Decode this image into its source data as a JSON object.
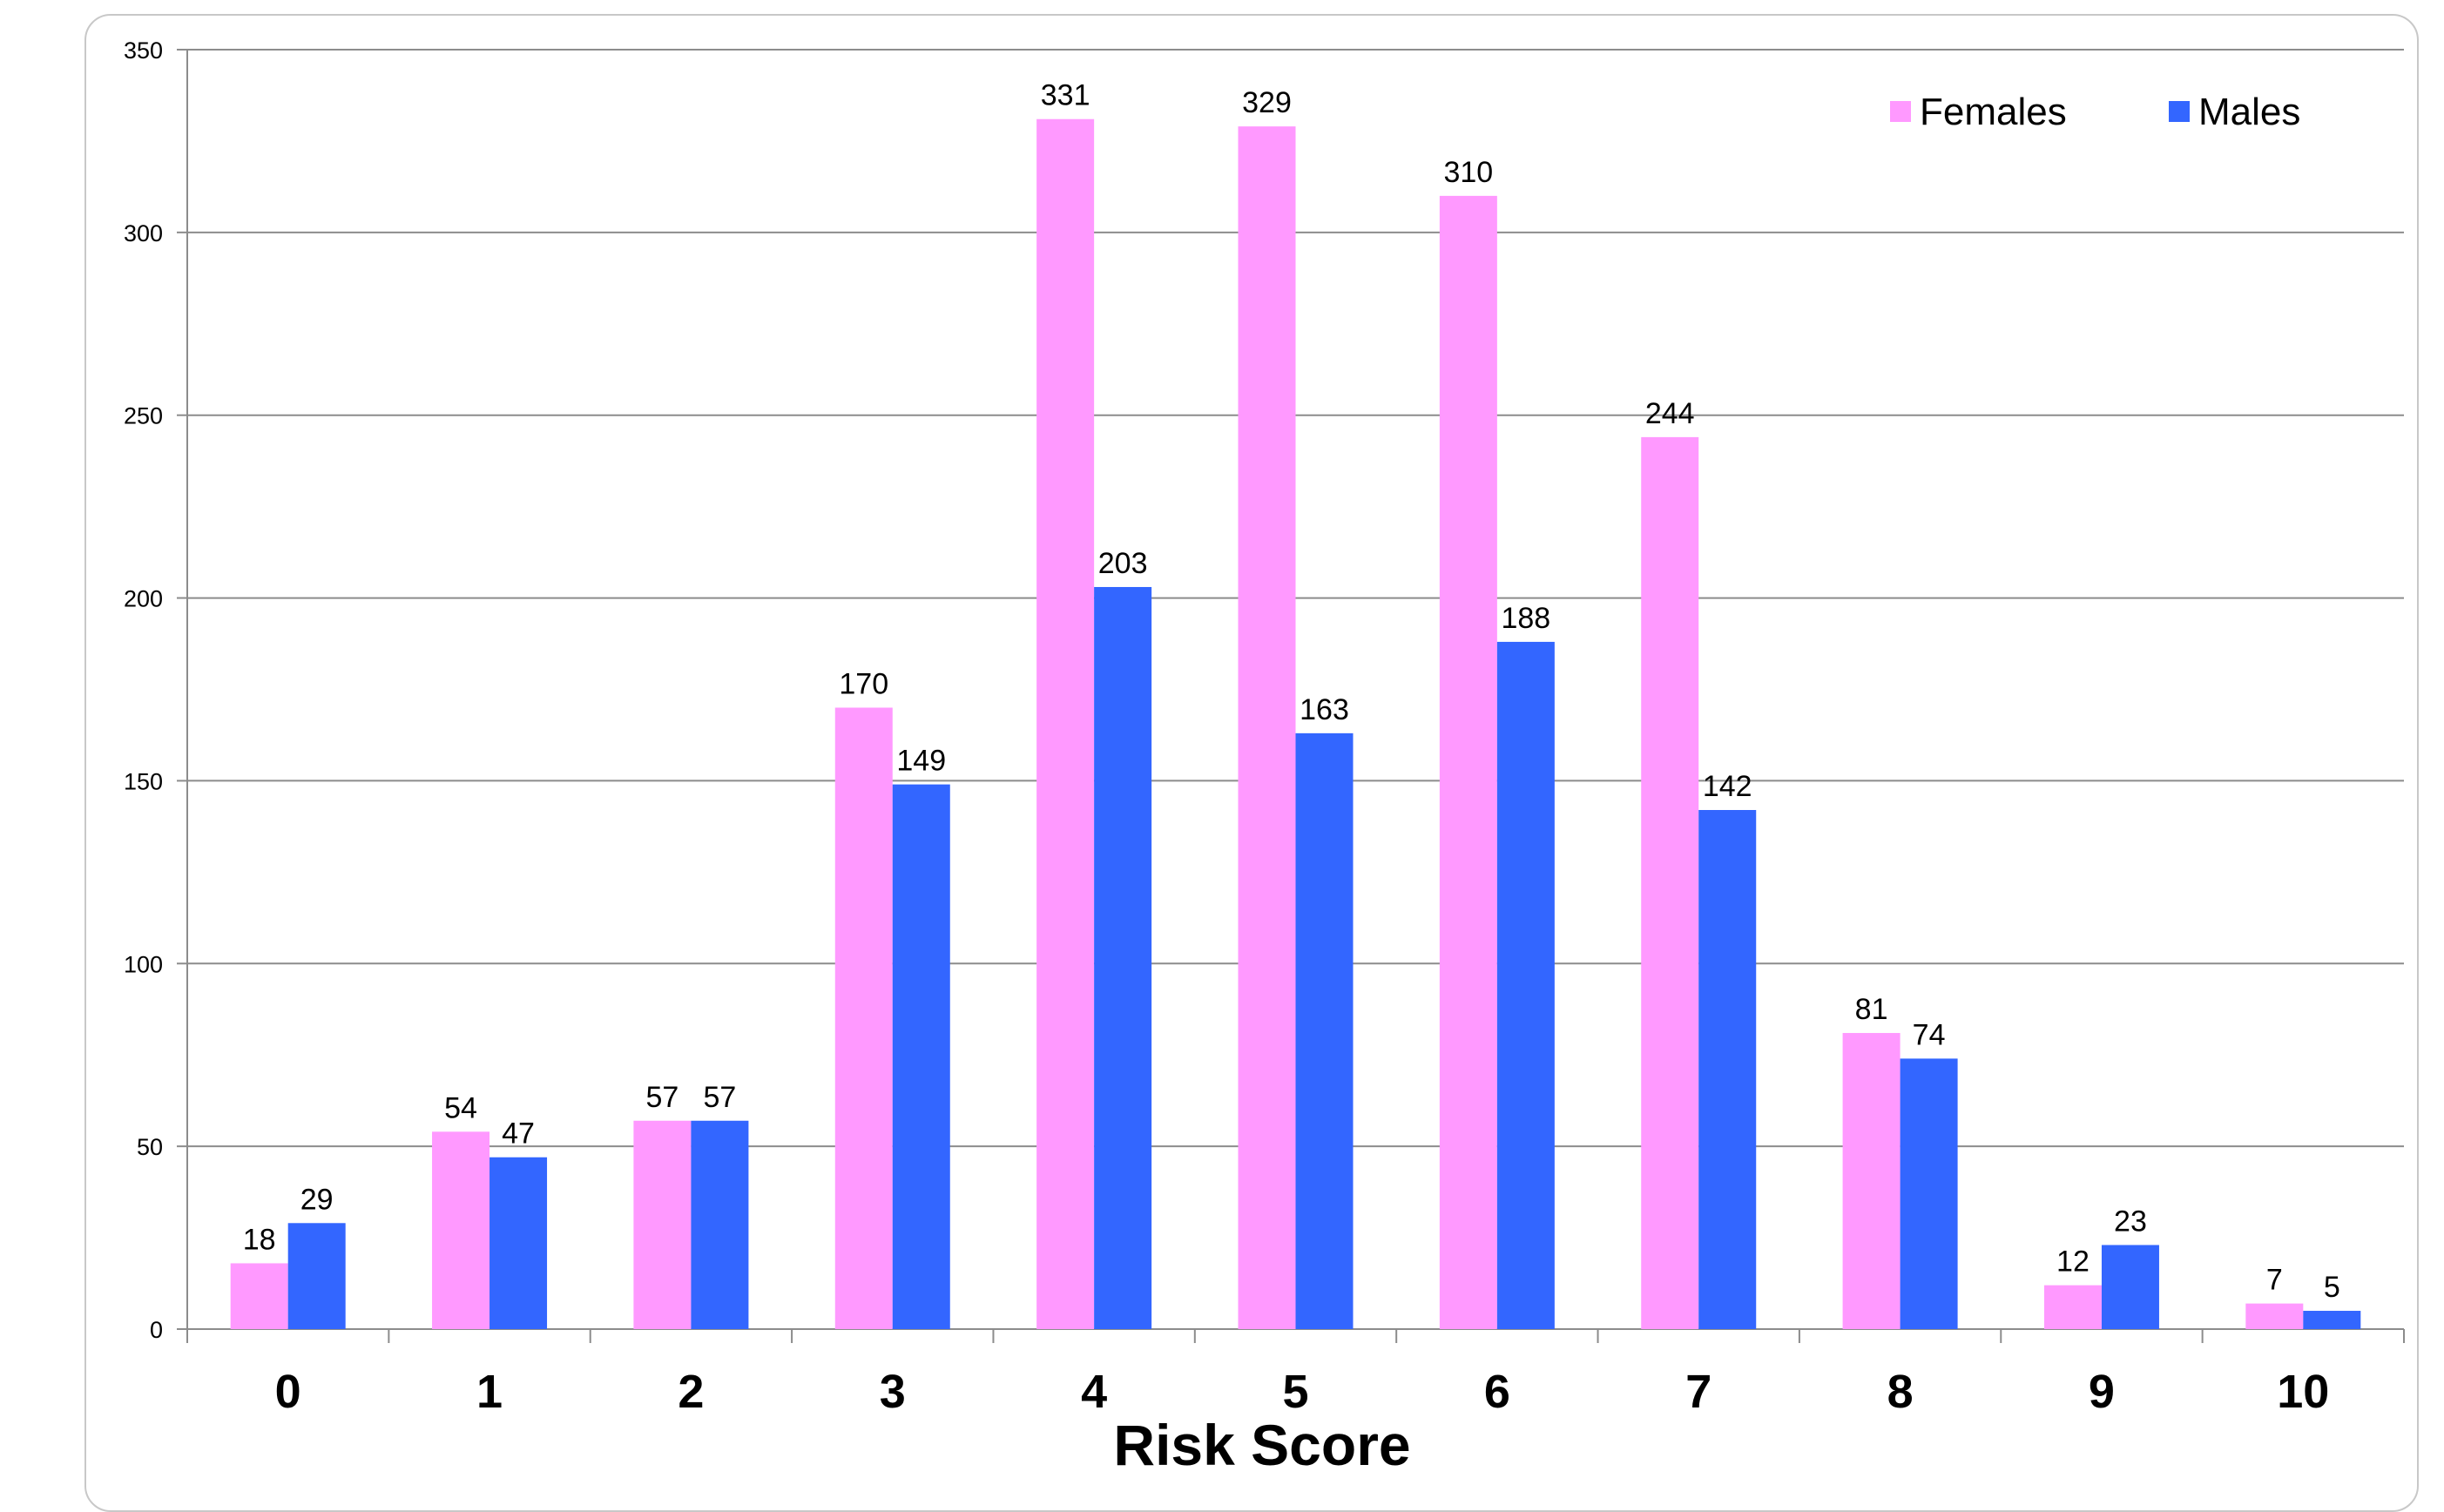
{
  "chart_data": {
    "type": "bar",
    "categories": [
      "0",
      "1",
      "2",
      "3",
      "4",
      "5",
      "6",
      "7",
      "8",
      "9",
      "10"
    ],
    "series": [
      {
        "name": "Females",
        "color": "#ff99ff",
        "values": [
          18,
          54,
          57,
          170,
          331,
          329,
          310,
          244,
          81,
          12,
          7
        ]
      },
      {
        "name": "Males",
        "color": "#3366ff",
        "values": [
          29,
          47,
          57,
          149,
          203,
          163,
          188,
          142,
          74,
          23,
          5
        ]
      }
    ],
    "title": "",
    "xlabel": "Risk Score",
    "ylabel": "",
    "ylim": [
      0,
      350
    ],
    "yticks": [
      0,
      50,
      100,
      150,
      200,
      250,
      300,
      350
    ],
    "grid": true,
    "legend": "top-right"
  }
}
